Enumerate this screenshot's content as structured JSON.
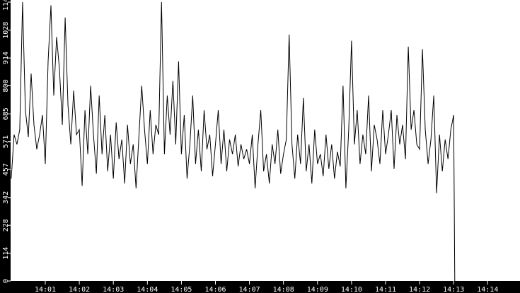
{
  "chart_data": {
    "type": "line",
    "title": "",
    "xlabel": "",
    "ylabel": "",
    "ylim": [
      0,
      1143
    ],
    "y_ticks": [
      "0",
      "114",
      "228",
      "342",
      "457",
      "571",
      "685",
      "800",
      "914",
      "1028",
      "1143"
    ],
    "x_ticks": [
      "14:01",
      "14:02",
      "14:03",
      "14:04",
      "14:05",
      "14:06",
      "14:07",
      "14:08",
      "14:09",
      "14:10",
      "14:11",
      "14:12",
      "14:13",
      "14:14"
    ],
    "x_range": [
      "14:00:00",
      "14:14:45"
    ],
    "x_start": "14:00:00",
    "x_step_seconds": 5,
    "grid": false,
    "colors": {
      "background": "#000000",
      "plot": "#ffffff",
      "line": "#000000",
      "text": "#ffffff"
    },
    "series": [
      {
        "values": [
          420,
          600,
          560,
          620,
          1143,
          700,
          590,
          850,
          640,
          540,
          600,
          680,
          480,
          900,
          1130,
          760,
          1000,
          870,
          640,
          1080,
          720,
          560,
          780,
          600,
          620,
          390,
          700,
          520,
          800,
          600,
          440,
          760,
          520,
          680,
          450,
          600,
          420,
          650,
          500,
          580,
          400,
          640,
          480,
          560,
          380,
          590,
          800,
          620,
          480,
          700,
          520,
          640,
          600,
          1143,
          520,
          760,
          600,
          820,
          560,
          900,
          520,
          680,
          420,
          560,
          760,
          480,
          620,
          450,
          700,
          540,
          600,
          430,
          560,
          700,
          480,
          620,
          450,
          580,
          520,
          600,
          470,
          560,
          500,
          540,
          480,
          600,
          380,
          560,
          700,
          450,
          520,
          400,
          560,
          480,
          620,
          440,
          520,
          580,
          1010,
          560,
          420,
          600,
          480,
          750,
          450,
          560,
          400,
          620,
          480,
          520,
          430,
          600,
          460,
          560,
          420,
          530,
          470,
          800,
          380,
          620,
          985,
          560,
          700,
          480,
          600,
          520,
          760,
          450,
          640,
          580,
          480,
          700,
          520,
          600,
          700,
          460,
          680,
          560,
          640,
          500,
          960,
          620,
          700,
          560,
          540,
          950,
          620,
          480,
          580,
          760,
          360,
          600,
          450,
          580,
          500,
          620,
          680,
          0
        ]
      }
    ]
  }
}
